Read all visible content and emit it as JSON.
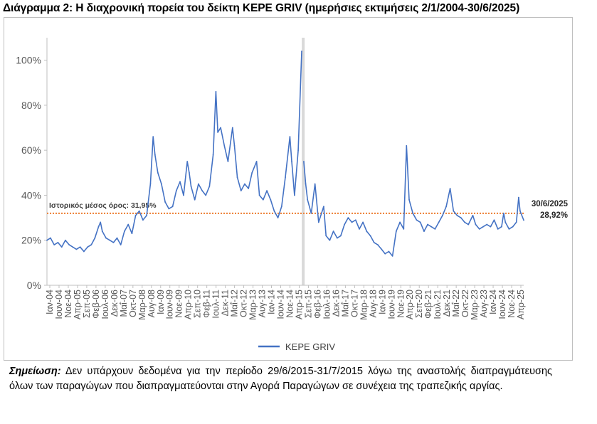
{
  "title": "Διάγραμμα 2: Η διαχρονική πορεία του δείκτη KEPE GRIV (ημερήσιες εκτιμήσεις 2/1/2004-30/6/2025)",
  "note": {
    "label": "Σημείωση:",
    "text": "Δεν υπάρχουν δεδομένα για την περίοδο 29/6/2015-31/7/2015 λόγω της αναστολής διαπραγμάτευσης όλων των παραγώγων που διαπραγματεύονται στην Αγορά Παραγώγων σε συνέχεια της τραπεζικής αργίας."
  },
  "colors": {
    "series": "#4472c4",
    "mean_line": "#ed7d31",
    "gap_band": "#d9d9d9",
    "axis": "#bfbfbf"
  },
  "chart_data": {
    "type": "line",
    "title": "",
    "xlabel": "",
    "ylabel": "",
    "ylim": [
      0,
      1.1
    ],
    "yticks": [
      0,
      0.2,
      0.4,
      0.6,
      0.8,
      1.0
    ],
    "ytick_labels": [
      "0%",
      "20%",
      "40%",
      "60%",
      "80%",
      "100%"
    ],
    "xlim": [
      "2004-01-02",
      "2025-06-30"
    ],
    "xtick_labels": [
      "Ιαν-04",
      "Ιουν-04",
      "Νοε-04",
      "Απρ-05",
      "Σεπ-05",
      "Φεβ-06",
      "Ιουλ-06",
      "Δεκ-06",
      "Μαΐ-07",
      "Οκτ-07",
      "Μαρ-08",
      "Αυγ-08",
      "Ιαν-09",
      "Ιουν-09",
      "Νοε-09",
      "Απρ-10",
      "Σεπ-10",
      "Φεβ-11",
      "Ιουλ-11",
      "Δεκ-11",
      "Μαΐ-12",
      "Οκτ-12",
      "Μαρ-13",
      "Αυγ-13",
      "Ιαν-14",
      "Ιουν-14",
      "Νοε-14",
      "Απρ-15",
      "Σεπ-15",
      "Φεβ-16",
      "Ιουλ-16",
      "Δεκ-16",
      "Μαΐ-17",
      "Οκτ-17",
      "Μαρ-18",
      "Αυγ-18",
      "Ιαν-19",
      "Ιουν-19",
      "Νοε-19",
      "Απρ-20",
      "Σεπ-20",
      "Φεβ-21",
      "Ιουλ-21",
      "Δεκ-21",
      "Μαΐ-22",
      "Οκτ-22",
      "Μαρ-23",
      "Αυγ-23",
      "Ιαν-24",
      "Ιουν-24",
      "Νοε-24",
      "Απρ-25"
    ],
    "grid": false,
    "legend_position": "bottom",
    "series": [
      {
        "name": "KEPE GRIV",
        "x": [
          "2004-01-02",
          "2004-03-01",
          "2004-05-01",
          "2004-07-01",
          "2004-09-01",
          "2004-11-01",
          "2005-01-01",
          "2005-03-01",
          "2005-05-01",
          "2005-07-01",
          "2005-09-01",
          "2005-11-01",
          "2006-01-01",
          "2006-03-01",
          "2006-05-01",
          "2006-06-01",
          "2006-07-01",
          "2006-09-01",
          "2006-11-01",
          "2007-01-01",
          "2007-03-01",
          "2007-05-01",
          "2007-07-01",
          "2007-09-01",
          "2007-11-01",
          "2008-01-01",
          "2008-03-01",
          "2008-05-01",
          "2008-07-01",
          "2008-09-01",
          "2008-10-15",
          "2008-11-15",
          "2009-01-01",
          "2009-03-01",
          "2009-05-01",
          "2009-07-01",
          "2009-09-01",
          "2009-11-01",
          "2010-01-01",
          "2010-03-01",
          "2010-05-01",
          "2010-06-01",
          "2010-07-01",
          "2010-09-01",
          "2010-11-01",
          "2011-01-01",
          "2011-03-01",
          "2011-05-01",
          "2011-07-01",
          "2011-08-15",
          "2011-09-15",
          "2011-11-01",
          "2012-01-01",
          "2012-03-01",
          "2012-05-15",
          "2012-06-15",
          "2012-08-01",
          "2012-10-01",
          "2012-12-01",
          "2013-02-01",
          "2013-04-01",
          "2013-06-15",
          "2013-08-01",
          "2013-10-01",
          "2013-12-01",
          "2014-02-01",
          "2014-04-01",
          "2014-06-01",
          "2014-08-01",
          "2014-10-01",
          "2014-12-15",
          "2015-01-15",
          "2015-03-01",
          "2015-05-01",
          "2015-06-28",
          "2015-08-01",
          "2015-09-01",
          "2015-10-01",
          "2015-12-01",
          "2016-02-01",
          "2016-04-01",
          "2016-06-24",
          "2016-08-01",
          "2016-10-01",
          "2016-12-01",
          "2017-02-01",
          "2017-04-01",
          "2017-06-01",
          "2017-08-01",
          "2017-10-01",
          "2017-12-01",
          "2018-02-01",
          "2018-04-01",
          "2018-06-01",
          "2018-08-01",
          "2018-10-01",
          "2018-12-01",
          "2019-02-01",
          "2019-04-01",
          "2019-06-01",
          "2019-08-01",
          "2019-10-01",
          "2019-12-01",
          "2020-02-01",
          "2020-03-18",
          "2020-05-01",
          "2020-07-01",
          "2020-09-01",
          "2020-11-01",
          "2021-01-01",
          "2021-03-01",
          "2021-05-01",
          "2021-07-01",
          "2021-09-01",
          "2021-11-01",
          "2022-01-01",
          "2022-03-07",
          "2022-05-01",
          "2022-07-01",
          "2022-09-01",
          "2022-11-01",
          "2023-01-01",
          "2023-03-15",
          "2023-05-01",
          "2023-07-01",
          "2023-09-01",
          "2023-11-01",
          "2024-01-01",
          "2024-03-01",
          "2024-05-01",
          "2024-07-01",
          "2024-08-05",
          "2024-09-01",
          "2024-11-01",
          "2025-01-01",
          "2025-03-01",
          "2025-04-08",
          "2025-05-01",
          "2025-06-30"
        ],
        "values": [
          0.2,
          0.21,
          0.18,
          0.19,
          0.17,
          0.2,
          0.18,
          0.17,
          0.16,
          0.17,
          0.15,
          0.17,
          0.18,
          0.21,
          0.26,
          0.28,
          0.24,
          0.21,
          0.2,
          0.19,
          0.21,
          0.18,
          0.24,
          0.27,
          0.23,
          0.31,
          0.33,
          0.29,
          0.31,
          0.45,
          0.66,
          0.58,
          0.5,
          0.45,
          0.37,
          0.34,
          0.35,
          0.42,
          0.46,
          0.4,
          0.55,
          0.5,
          0.44,
          0.38,
          0.45,
          0.42,
          0.4,
          0.44,
          0.58,
          0.86,
          0.68,
          0.7,
          0.62,
          0.55,
          0.7,
          0.62,
          0.48,
          0.42,
          0.45,
          0.43,
          0.5,
          0.55,
          0.4,
          0.38,
          0.42,
          0.38,
          0.33,
          0.3,
          0.35,
          0.48,
          0.66,
          0.55,
          0.4,
          0.6,
          1.04,
          0.55,
          0.45,
          0.38,
          0.32,
          0.45,
          0.28,
          0.35,
          0.22,
          0.2,
          0.24,
          0.21,
          0.22,
          0.27,
          0.3,
          0.28,
          0.29,
          0.25,
          0.28,
          0.24,
          0.22,
          0.19,
          0.18,
          0.16,
          0.14,
          0.15,
          0.13,
          0.24,
          0.28,
          0.25,
          0.62,
          0.38,
          0.32,
          0.29,
          0.28,
          0.24,
          0.27,
          0.26,
          0.25,
          0.28,
          0.31,
          0.35,
          0.43,
          0.33,
          0.31,
          0.3,
          0.28,
          0.27,
          0.31,
          0.27,
          0.25,
          0.26,
          0.27,
          0.26,
          0.29,
          0.25,
          0.26,
          0.32,
          0.28,
          0.25,
          0.26,
          0.28,
          0.39,
          0.33,
          0.2892
        ],
        "color": "#4472c4"
      }
    ],
    "mean_line": {
      "value": 0.3195,
      "label": "Ιστορικός μέσος όρος: 31,95%"
    },
    "gap_band": {
      "from": "2015-06-29",
      "to": "2015-07-31"
    },
    "end_label": {
      "date": "30/6/2025",
      "value_text": "28,92%"
    }
  }
}
